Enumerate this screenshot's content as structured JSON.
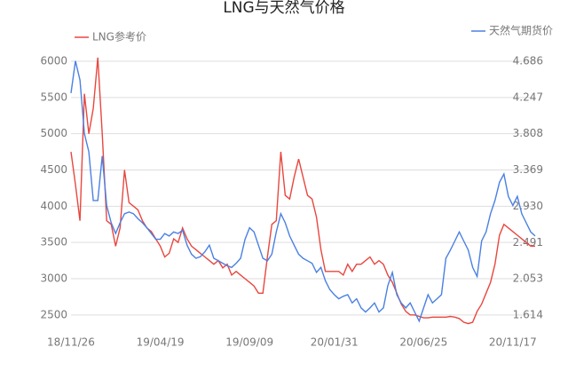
{
  "chart_data": {
    "type": "line",
    "title": "LNG与天然气价格",
    "categories": [
      "18/11/26",
      null,
      null,
      null,
      null,
      null,
      null,
      null,
      null,
      null,
      null,
      null,
      null,
      null,
      null,
      null,
      null,
      null,
      null,
      null,
      "19/04/19",
      null,
      null,
      null,
      null,
      null,
      null,
      null,
      null,
      null,
      null,
      null,
      null,
      null,
      null,
      null,
      null,
      null,
      null,
      null,
      "19/09/09",
      null,
      null,
      null,
      null,
      null,
      null,
      null,
      null,
      null,
      null,
      null,
      null,
      null,
      null,
      null,
      null,
      null,
      null,
      "20/01/31",
      null,
      null,
      null,
      null,
      null,
      null,
      null,
      null,
      null,
      null,
      null,
      null,
      null,
      null,
      null,
      null,
      null,
      null,
      null,
      "20/06/25",
      null,
      null,
      null,
      null,
      null,
      null,
      null,
      null,
      null,
      null,
      null,
      null,
      null,
      null,
      null,
      null,
      null,
      null,
      null,
      "20/11/17",
      null,
      null,
      null,
      null,
      null
    ],
    "series": [
      {
        "name": "LNG参考价",
        "color": "#e8473f",
        "values": [
          4750,
          4300,
          3800,
          5550,
          5000,
          5350,
          6050,
          5000,
          3800,
          3750,
          3450,
          3700,
          4500,
          4050,
          4000,
          3950,
          3800,
          3700,
          3650,
          3550,
          3450,
          3300,
          3350,
          3550,
          3500,
          3700,
          3550,
          3450,
          3400,
          3350,
          3300,
          3250,
          3200,
          3250,
          3150,
          3200,
          3050,
          3100,
          3050,
          3000,
          2950,
          2900,
          2800,
          2800,
          3300,
          3750,
          3800,
          4750,
          4150,
          4100,
          4400,
          4650,
          4400,
          4150,
          4100,
          3850,
          3400,
          3100,
          3100,
          3100,
          3100,
          3050,
          3200,
          3100,
          3200,
          3200,
          3250,
          3300,
          3200,
          3250,
          3200,
          3050,
          2950,
          2800,
          2650,
          2550,
          2500,
          2500,
          2480,
          2460,
          2460,
          2470,
          2470,
          2470,
          2470,
          2480,
          2470,
          2450,
          2400,
          2380,
          2400,
          2550,
          2650,
          2800,
          2950,
          3200,
          3600,
          3750,
          3700,
          3650,
          3600,
          3550,
          3500,
          3450,
          3450
        ]
      },
      {
        "name": "天然气期货价",
        "color": "#4a80e2",
        "axis": "y2",
        "values": [
          4.3,
          4.69,
          4.46,
          3.81,
          3.59,
          3.0,
          3.0,
          3.54,
          2.94,
          2.73,
          2.6,
          2.73,
          2.84,
          2.86,
          2.84,
          2.78,
          2.73,
          2.67,
          2.6,
          2.53,
          2.53,
          2.6,
          2.57,
          2.62,
          2.6,
          2.64,
          2.46,
          2.35,
          2.3,
          2.32,
          2.38,
          2.46,
          2.3,
          2.27,
          2.24,
          2.21,
          2.19,
          2.24,
          2.3,
          2.53,
          2.67,
          2.62,
          2.46,
          2.3,
          2.27,
          2.35,
          2.62,
          2.84,
          2.73,
          2.57,
          2.46,
          2.35,
          2.3,
          2.27,
          2.24,
          2.13,
          2.19,
          2.03,
          1.92,
          1.86,
          1.81,
          1.84,
          1.86,
          1.76,
          1.81,
          1.7,
          1.65,
          1.7,
          1.76,
          1.65,
          1.7,
          1.97,
          2.13,
          1.86,
          1.76,
          1.7,
          1.76,
          1.65,
          1.54,
          1.7,
          1.86,
          1.76,
          1.81,
          1.86,
          2.3,
          2.4,
          2.51,
          2.62,
          2.51,
          2.4,
          2.19,
          2.08,
          2.51,
          2.62,
          2.84,
          3.0,
          3.22,
          3.32,
          3.05,
          2.94,
          3.05,
          2.84,
          2.73,
          2.62,
          2.57
        ]
      }
    ],
    "ylim": [
      2290,
      6110
    ],
    "yticks": [
      2500,
      3000,
      3500,
      4000,
      4500,
      5000,
      5500,
      6000
    ],
    "y2lim": [
      1.43,
      4.783
    ],
    "y2ticks": [
      1.614,
      2.053,
      2.491,
      {
        "value": 2.93,
        "label": "2.930"
      },
      3.369,
      3.808,
      4.247,
      4.686
    ],
    "grid": true
  }
}
